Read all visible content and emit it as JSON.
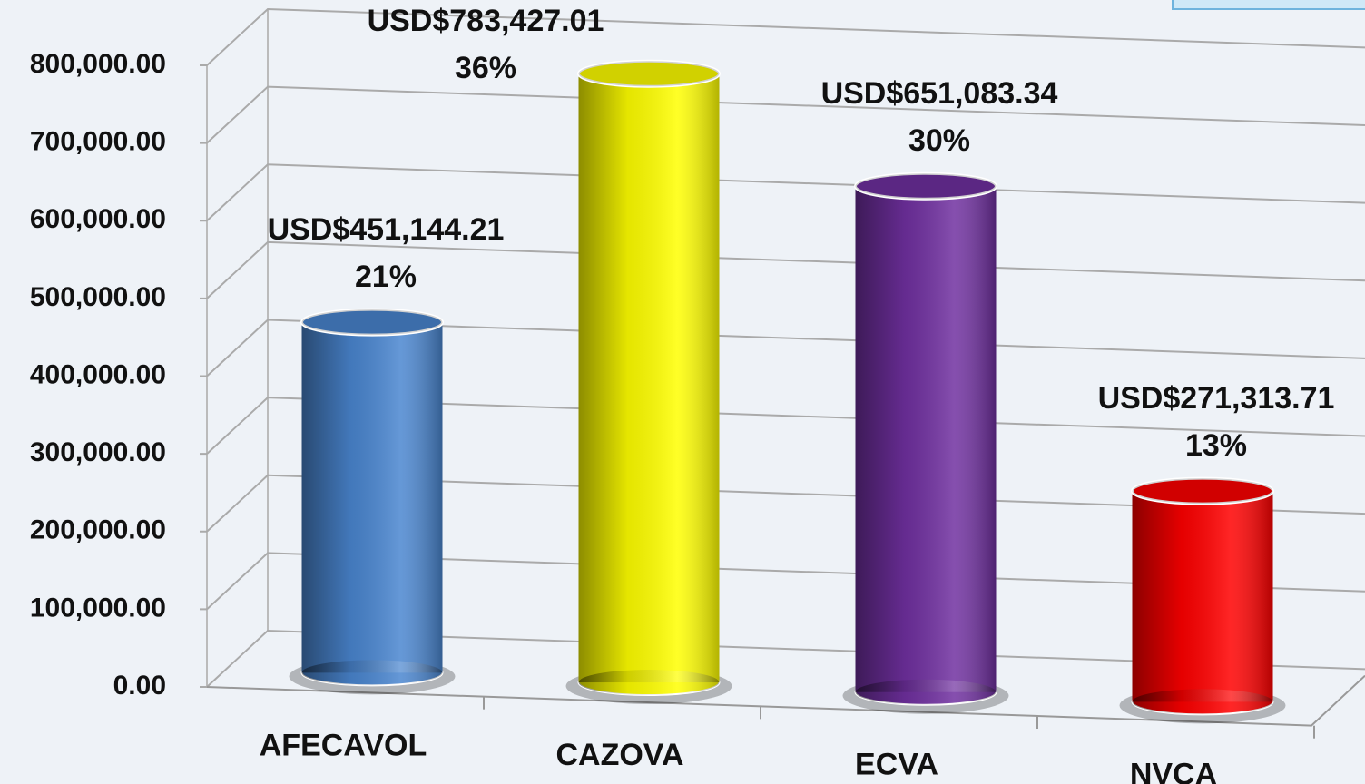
{
  "chart_data": {
    "type": "bar",
    "categories": [
      "AFECAVOL",
      "CAZOVA",
      "ECVA",
      "NVCA"
    ],
    "values": [
      451144.21,
      783427.01,
      651083.34,
      271313.71
    ],
    "value_labels": [
      "USD$451,144.21",
      "USD$783,427.01",
      "USD$651,083.34",
      "USD$271,313.71"
    ],
    "percentage_labels": [
      "21%",
      "36%",
      "30%",
      "13%"
    ],
    "colors": [
      "#4a86d0",
      "#ffff00",
      "#7030a0",
      "#ff0000"
    ],
    "ylim": [
      0,
      800000
    ],
    "yticks": [
      {
        "value": 0,
        "label": "0.00"
      },
      {
        "value": 100000,
        "label": "100,000.00"
      },
      {
        "value": 200000,
        "label": "200,000.00"
      },
      {
        "value": 300000,
        "label": "300,000.00"
      },
      {
        "value": 400000,
        "label": "400,000.00"
      },
      {
        "value": 500000,
        "label": "500,000.00"
      },
      {
        "value": 600000,
        "label": "600,000.00"
      },
      {
        "value": 700000,
        "label": "700,000.00"
      },
      {
        "value": 800000,
        "label": "800,000.00"
      }
    ],
    "grid": true
  }
}
